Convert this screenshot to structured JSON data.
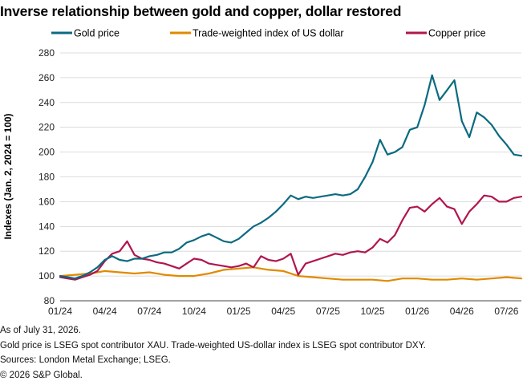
{
  "title": "Inverse relationship between gold and copper, dollar restored",
  "footnotes": [
    "As of July 31, 2026.",
    "Gold price is LSEG spot contributor XAU. Trade-weighted US-dollar index is LSEG spot contributor DXY.",
    "Sources: London Metal Exchange; LSEG.",
    "© 2026 S&P Global."
  ],
  "chart_data": {
    "type": "line",
    "ylabel": "Indexes (Jan. 2, 2024 = 100)",
    "xlabel": "",
    "ylim": [
      80,
      280
    ],
    "yticks": [
      80,
      100,
      120,
      140,
      160,
      180,
      200,
      220,
      240,
      260,
      280
    ],
    "xticks": [
      "01/24",
      "04/24",
      "07/24",
      "10/24",
      "01/25",
      "04/25",
      "07/25",
      "10/25",
      "01/26",
      "04/26",
      "07/26"
    ],
    "x_unit": "month",
    "x_start": "01/24",
    "x_end": "07/26",
    "grid": "horizontal",
    "legend_position": "top",
    "series": [
      {
        "name": "Gold price",
        "color": "#0b6a80",
        "points": [
          [
            0,
            100
          ],
          [
            0.5,
            99
          ],
          [
            1,
            98
          ],
          [
            1.5,
            100
          ],
          [
            2,
            103
          ],
          [
            2.5,
            107
          ],
          [
            3,
            113
          ],
          [
            3.5,
            116
          ],
          [
            4,
            113
          ],
          [
            4.5,
            112
          ],
          [
            5,
            114
          ],
          [
            5.5,
            114
          ],
          [
            6,
            116
          ],
          [
            6.5,
            117
          ],
          [
            7,
            119
          ],
          [
            7.5,
            119
          ],
          [
            8,
            122
          ],
          [
            8.5,
            127
          ],
          [
            9,
            129
          ],
          [
            9.5,
            132
          ],
          [
            10,
            134
          ],
          [
            10.5,
            131
          ],
          [
            11,
            128
          ],
          [
            11.5,
            127
          ],
          [
            12,
            130
          ],
          [
            12.5,
            135
          ],
          [
            13,
            140
          ],
          [
            13.5,
            143
          ],
          [
            14,
            147
          ],
          [
            14.5,
            152
          ],
          [
            15,
            158
          ],
          [
            15.5,
            165
          ],
          [
            16,
            162
          ],
          [
            16.5,
            164
          ],
          [
            17,
            163
          ],
          [
            17.5,
            164
          ],
          [
            18,
            165
          ],
          [
            18.5,
            166
          ],
          [
            19,
            165
          ],
          [
            19.5,
            166
          ],
          [
            20,
            170
          ],
          [
            20.5,
            180
          ],
          [
            21,
            192
          ],
          [
            21.5,
            210
          ],
          [
            22,
            198
          ],
          [
            22.5,
            200
          ],
          [
            23,
            204
          ],
          [
            23.5,
            218
          ],
          [
            24,
            220
          ],
          [
            24.5,
            238
          ],
          [
            25,
            262
          ],
          [
            25.5,
            242
          ],
          [
            26,
            250
          ],
          [
            26.5,
            258
          ],
          [
            27,
            225
          ],
          [
            27.5,
            212
          ],
          [
            28,
            232
          ],
          [
            28.5,
            228
          ],
          [
            29,
            222
          ],
          [
            29.5,
            213
          ],
          [
            30,
            206
          ],
          [
            30.5,
            198
          ],
          [
            31,
            197
          ]
        ]
      },
      {
        "name": "Trade-weighted index of US dollar",
        "color": "#e08a00",
        "points": [
          [
            0,
            100
          ],
          [
            1,
            101
          ],
          [
            2,
            102
          ],
          [
            3,
            104
          ],
          [
            4,
            103
          ],
          [
            5,
            102
          ],
          [
            6,
            103
          ],
          [
            7,
            101
          ],
          [
            8,
            100
          ],
          [
            9,
            100
          ],
          [
            10,
            102
          ],
          [
            11,
            105
          ],
          [
            12,
            106
          ],
          [
            13,
            107
          ],
          [
            14,
            105
          ],
          [
            15,
            104
          ],
          [
            16,
            100
          ],
          [
            17,
            99
          ],
          [
            18,
            98
          ],
          [
            19,
            97
          ],
          [
            20,
            97
          ],
          [
            21,
            97
          ],
          [
            22,
            96
          ],
          [
            23,
            98
          ],
          [
            24,
            98
          ],
          [
            25,
            97
          ],
          [
            26,
            97
          ],
          [
            27,
            98
          ],
          [
            28,
            97
          ],
          [
            29,
            98
          ],
          [
            30,
            99
          ],
          [
            31,
            98
          ]
        ]
      },
      {
        "name": "Copper price",
        "color": "#b0164e",
        "points": [
          [
            0,
            99
          ],
          [
            0.5,
            98
          ],
          [
            1,
            97
          ],
          [
            1.5,
            99
          ],
          [
            2,
            101
          ],
          [
            2.5,
            104
          ],
          [
            3,
            112
          ],
          [
            3.5,
            118
          ],
          [
            4,
            120
          ],
          [
            4.5,
            128
          ],
          [
            5,
            117
          ],
          [
            5.5,
            114
          ],
          [
            6,
            113
          ],
          [
            6.5,
            111
          ],
          [
            7,
            110
          ],
          [
            7.5,
            108
          ],
          [
            8,
            106
          ],
          [
            8.5,
            110
          ],
          [
            9,
            114
          ],
          [
            9.5,
            113
          ],
          [
            10,
            110
          ],
          [
            10.5,
            109
          ],
          [
            11,
            108
          ],
          [
            11.5,
            107
          ],
          [
            12,
            108
          ],
          [
            12.5,
            110
          ],
          [
            13,
            107
          ],
          [
            13.5,
            116
          ],
          [
            14,
            113
          ],
          [
            14.5,
            112
          ],
          [
            15,
            114
          ],
          [
            15.5,
            118
          ],
          [
            16,
            101
          ],
          [
            16.5,
            110
          ],
          [
            17,
            112
          ],
          [
            17.5,
            114
          ],
          [
            18,
            116
          ],
          [
            18.5,
            118
          ],
          [
            19,
            117
          ],
          [
            19.5,
            119
          ],
          [
            20,
            120
          ],
          [
            20.5,
            119
          ],
          [
            21,
            123
          ],
          [
            21.5,
            130
          ],
          [
            22,
            127
          ],
          [
            22.5,
            133
          ],
          [
            23,
            145
          ],
          [
            23.5,
            155
          ],
          [
            24,
            156
          ],
          [
            24.5,
            152
          ],
          [
            25,
            158
          ],
          [
            25.5,
            163
          ],
          [
            26,
            156
          ],
          [
            26.5,
            154
          ],
          [
            27,
            142
          ],
          [
            27.5,
            152
          ],
          [
            28,
            158
          ],
          [
            28.5,
            165
          ],
          [
            29,
            164
          ],
          [
            29.5,
            160
          ],
          [
            30,
            160
          ],
          [
            30.5,
            163
          ],
          [
            31,
            164
          ]
        ]
      }
    ]
  }
}
